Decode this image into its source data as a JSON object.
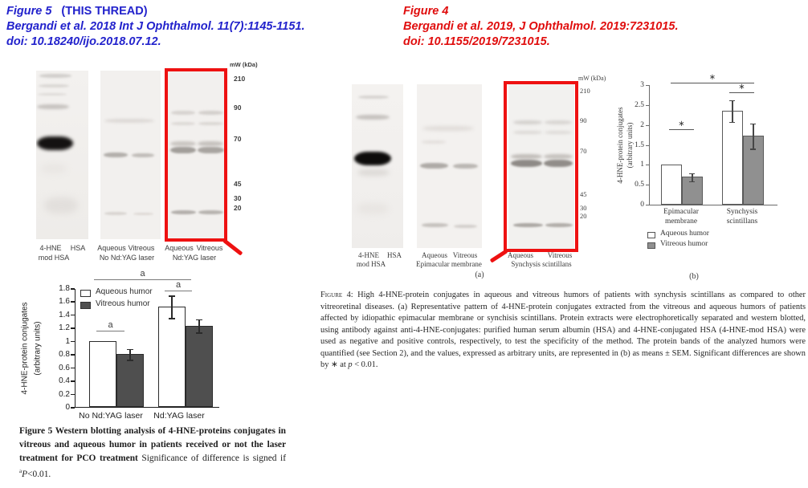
{
  "header_left": {
    "figure_label": "Figure 5",
    "thread_note": "(THIS THREAD)",
    "citation": "Bergandi et al. 2018 Int J Ophthalmol. 11(7):1145-1151.",
    "doi": "doi: 10.18240/ijo.2018.07.12.",
    "color": "#2222cc"
  },
  "header_right": {
    "figure_label": "Figure 4",
    "citation": "Bergandi et al. 2019, J Ophthalmol. 2019:7231015.",
    "doi": "doi: 10.1155/2019/7231015.",
    "color": "#e00d0d"
  },
  "figure5": {
    "blot": {
      "mw_title": "mW (kDa)",
      "markers": [
        "210",
        "90",
        "70",
        "45",
        "30",
        "20"
      ],
      "lanes": {
        "l1a": "4-HNE",
        "l1b": "HSA",
        "l1c": "mod HSA",
        "g2a": "Aqueous",
        "g2b": "Vitreous",
        "g2name": "No Nd:YAG laser",
        "g3a": "Aqueous",
        "g3b": "Vitreous",
        "g3name": "Nd:YAG laser"
      },
      "highlight_color": "#ee1111"
    },
    "caption": {
      "bold": "Figure 5 Western blotting analysis of 4-HNE-proteins conjugates in vitreous and aqueous humor in patients received or not the laser treatment for PCO treatment",
      "normal": "  Significance of difference is signed if ",
      "sup": "a",
      "pvar": "P",
      "tail": "<0.01."
    }
  },
  "figure4": {
    "blot": {
      "mw_title": "mW (kDa)",
      "markers": [
        "210",
        "90",
        "70",
        "45",
        "30",
        "20"
      ],
      "lanes": {
        "l1a": "4-HNE",
        "l1b": "HSA",
        "l1c": "mod HSA",
        "g2a": "Aqueous",
        "g2b": "Vitreous",
        "g2name": "Epimacular membrane",
        "g3a": "Aqueous",
        "g3b": "Vitreous",
        "g3name": "Synchysis scintillans"
      },
      "highlight_color": "#ee1111",
      "panel_a": "(a)",
      "panel_b": "(b)"
    },
    "caption": {
      "lead": "Figure 4:",
      "body": " High 4-HNE-protein conjugates in aqueous and vitreous humors of patients with synchysis scintillans as compared to other vitreoretinal diseases. (a) Representative pattern of 4-HNE-protein conjugates extracted from the vitreous and aqueous humors of patients affected by idiopathic epimacular membrane or synchisis scintillans. Protein extracts were electrophoretically separated and western blotted, using antibody against anti-4-HNE-conjugates: purified human serum albumin (HSA) and 4-HNE-conjugated HSA (4-HNE-mod HSA) were used as negative and positive controls, respectively, to test the specificity of the method. The protein bands of the analyzed humors were quantified (see Section 2), and the values, expressed as arbitrary units, are represented in (b) as means ± SEM. Significant differences are shown by ∗ at ",
      "pvar": "p",
      "tail": " < 0.01."
    }
  },
  "chart_data": [
    {
      "type": "bar",
      "panel": "Figure 5 bar chart",
      "categories": [
        "No Nd:YAG laser",
        "Nd:YAG laser"
      ],
      "series": [
        {
          "name": "Aqueous humor",
          "values": [
            1.0,
            1.52
          ],
          "errors": [
            0,
            0.17
          ],
          "fill": "#ffffff"
        },
        {
          "name": "Vitreous humor",
          "values": [
            0.8,
            1.23
          ],
          "errors": [
            0.08,
            0.1
          ],
          "fill": "#4f4f4f"
        }
      ],
      "title": "",
      "xlabel": "",
      "ylabel_lines": [
        "4-HNE-protein conjugates",
        "(arbitrary units)"
      ],
      "ylim": [
        0,
        1.8
      ],
      "yticks": [
        0,
        0.2,
        0.4,
        0.6,
        0.8,
        1,
        1.2,
        1.4,
        1.6,
        1.8
      ],
      "grid": false,
      "legend_position": "top-left-inside",
      "sig": [
        {
          "span": "No Nd:YAG laser: Aqueous vs Vitreous",
          "label": "a"
        },
        {
          "span": "Nd:YAG laser: Aqueous vs Vitreous",
          "label": "a"
        },
        {
          "span": "No Nd:YAG laser vs Nd:YAG laser",
          "label": "a"
        }
      ]
    },
    {
      "type": "bar",
      "panel": "Figure 4 (b)",
      "categories": [
        "Epimacular\nmembrane",
        "Synchysis\nscintillans"
      ],
      "series": [
        {
          "name": "Aqueous humor",
          "values": [
            1.0,
            2.35
          ],
          "errors": [
            0,
            0.27
          ],
          "fill": "#ffffff"
        },
        {
          "name": "Vitreous humor",
          "values": [
            0.7,
            1.73
          ],
          "errors": [
            0.1,
            0.32
          ],
          "fill": "#909090"
        }
      ],
      "title": "",
      "xlabel": "",
      "ylabel_lines": [
        "4-HNE-protein conjugates",
        "(arbitrary units)"
      ],
      "ylim": [
        0,
        3
      ],
      "yticks": [
        0,
        0.5,
        1,
        1.5,
        2,
        2.5,
        3
      ],
      "grid": false,
      "legend_position": "below",
      "sig": [
        {
          "span": "Epimacular membrane: Aqueous vs Vitreous",
          "label": "∗"
        },
        {
          "span": "Synchysis scintillans: Aqueous vs Vitreous",
          "label": "∗"
        },
        {
          "span": "Epimacular membrane vs Synchysis scintillans",
          "label": "∗"
        }
      ]
    }
  ]
}
